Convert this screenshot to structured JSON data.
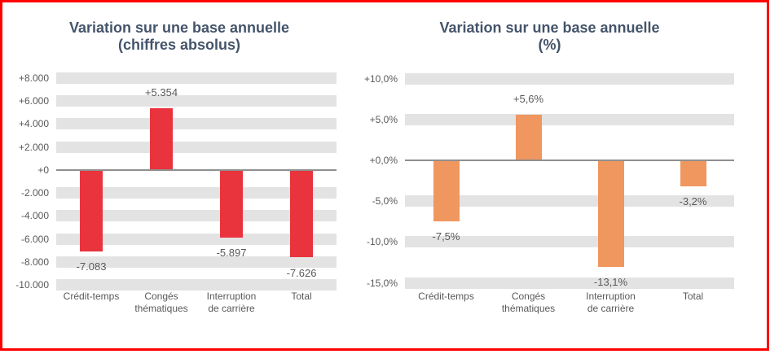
{
  "colors": {
    "frame_border": "#fe0000",
    "gridline_band": "#e3e3e3",
    "axis_line": "#8f8f8f",
    "title_text": "#44546a",
    "label_text": "#595959",
    "absolute_bar": "#e9333d",
    "percent_bar": "#f0965f"
  },
  "chart_data": [
    {
      "type": "bar",
      "title": "Variation sur une base annuelle",
      "subtitle": "(chiffres absolus)",
      "categories": [
        "Crédit-temps",
        "Congés thématiques",
        "Interruption de carrière",
        "Total"
      ],
      "category_lines": [
        [
          "Crédit-temps"
        ],
        [
          "Congés",
          "thématiques"
        ],
        [
          "Interruption",
          "de carrière"
        ],
        [
          "Total"
        ]
      ],
      "values": [
        -7083,
        5354,
        -5897,
        -7626
      ],
      "data_labels": [
        "-7.083",
        "+5.354",
        "-5.897",
        "-7.626"
      ],
      "bar_color": "#e9333d",
      "legend": "none",
      "gridlines": "thick-gray-bands",
      "y_axis": {
        "min": -10000,
        "max": 8000,
        "step": 2000,
        "ticks": [
          {
            "value": 8000,
            "label": "+8.000"
          },
          {
            "value": 6000,
            "label": "+6.000"
          },
          {
            "value": 4000,
            "label": "+4.000"
          },
          {
            "value": 2000,
            "label": "+2.000"
          },
          {
            "value": 0,
            "label": "+0"
          },
          {
            "value": -2000,
            "label": "-2.000"
          },
          {
            "value": -4000,
            "label": "-4.000"
          },
          {
            "value": -6000,
            "label": "-6.000"
          },
          {
            "value": -8000,
            "label": "-8.000"
          },
          {
            "value": -10000,
            "label": "-10.000"
          }
        ]
      }
    },
    {
      "type": "bar",
      "title": "Variation sur une base annuelle",
      "subtitle": "(%)",
      "categories": [
        "Crédit-temps",
        "Congés thématiques",
        "Interruption de carrière",
        "Total"
      ],
      "category_lines": [
        [
          "Crédit-temps"
        ],
        [
          "Congés",
          "thématiques"
        ],
        [
          "Interruption",
          "de carrière"
        ],
        [
          "Total"
        ]
      ],
      "values": [
        -7.5,
        5.6,
        -13.1,
        -3.2
      ],
      "data_labels": [
        "-7,5%",
        "+5,6%",
        "-13,1%",
        "-3,2%"
      ],
      "bar_color": "#f0965f",
      "legend": "none",
      "gridlines": "thick-gray-bands",
      "y_axis": {
        "min": -15,
        "max": 10,
        "step": 5,
        "ticks": [
          {
            "value": 10,
            "label": "+10,0%"
          },
          {
            "value": 5,
            "label": "+5,0%"
          },
          {
            "value": 0,
            "label": "+0,0%"
          },
          {
            "value": -5,
            "label": "-5,0%"
          },
          {
            "value": -10,
            "label": "-10,0%"
          },
          {
            "value": -15,
            "label": "-15,0%"
          }
        ]
      }
    }
  ]
}
